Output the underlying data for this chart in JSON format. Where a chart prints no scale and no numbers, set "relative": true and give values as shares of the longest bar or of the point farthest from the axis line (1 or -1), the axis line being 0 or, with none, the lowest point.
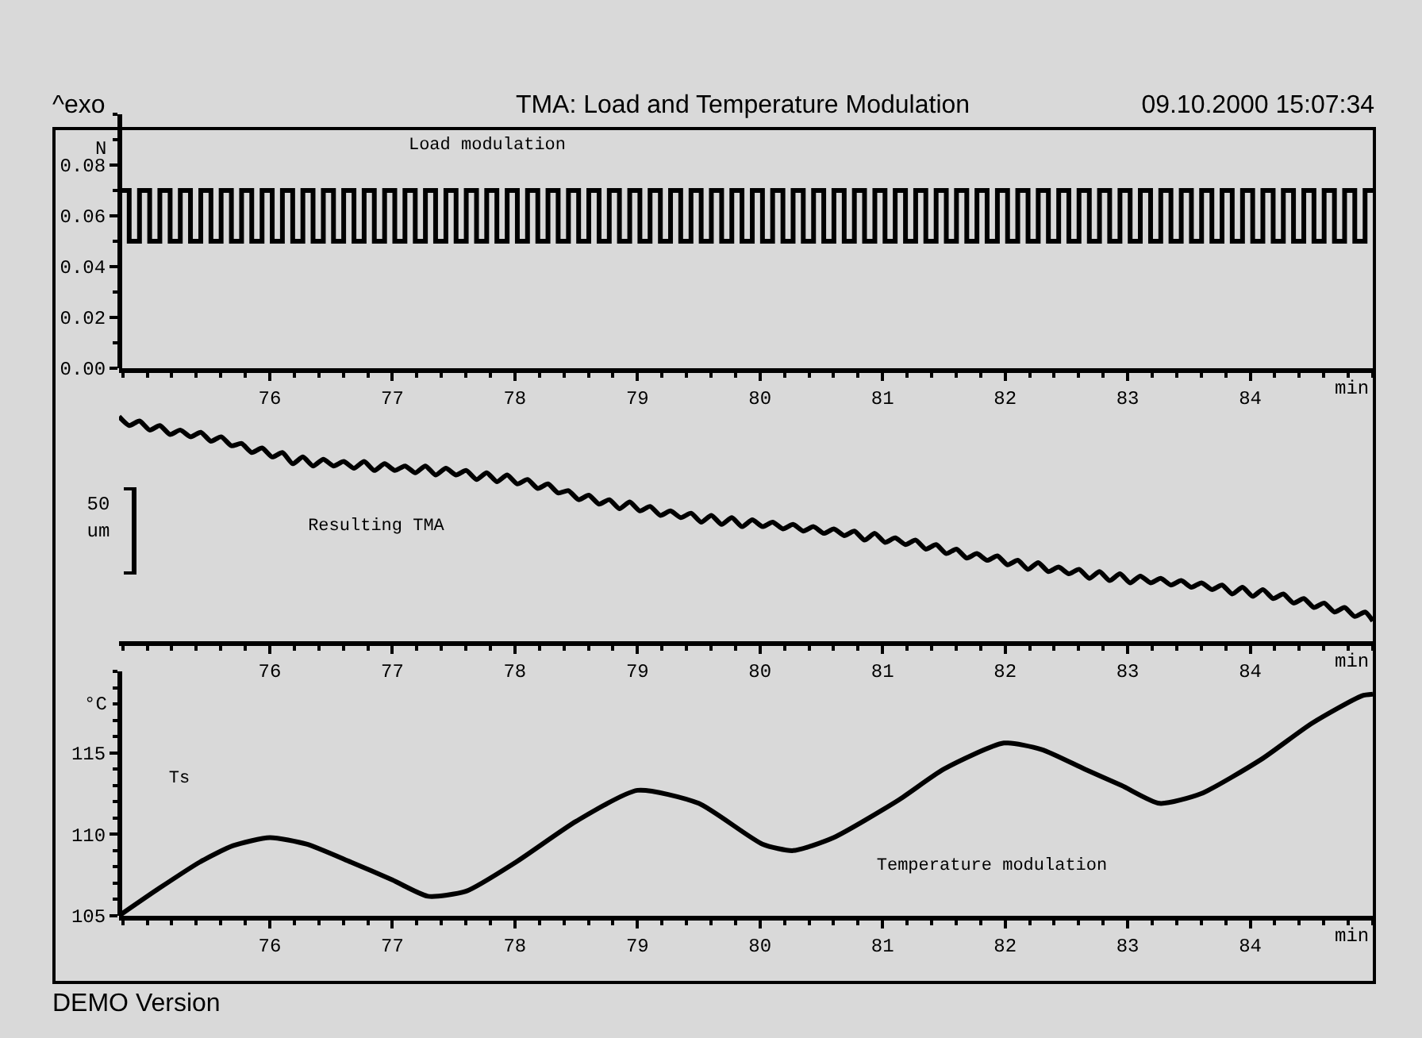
{
  "chart_data": [
    {
      "type": "step",
      "title": "TMA: Load and Temperature Modulation",
      "xlabel": "min",
      "ylabel": "N",
      "annotations": [
        "^exo",
        "09.10.2000 15:07:34",
        "Load modulation"
      ],
      "x": [
        74.77,
        74.853,
        74.937,
        75.02,
        75.103,
        75.187,
        75.27,
        75.353,
        75.437,
        75.52,
        75.603,
        75.687,
        75.77,
        75.853,
        75.937,
        76.02,
        76.103,
        76.187,
        76.27,
        76.353,
        76.437,
        76.52,
        76.603,
        76.687,
        76.77,
        76.853,
        76.937,
        77.02,
        77.103,
        77.187,
        77.27,
        77.353,
        77.437,
        77.52,
        77.603,
        77.687,
        77.77,
        77.853,
        77.937,
        78.02,
        78.103,
        78.187,
        78.27,
        78.353,
        78.437,
        78.52,
        78.603,
        78.687,
        78.77,
        78.853,
        78.937,
        79.02,
        79.103,
        79.187,
        79.27,
        79.353,
        79.437,
        79.52,
        79.603,
        79.687,
        79.77,
        79.853,
        79.937,
        80.02,
        80.103,
        80.187,
        80.27,
        80.353,
        80.437,
        80.52,
        80.603,
        80.687,
        80.77,
        80.853,
        80.937,
        81.02,
        81.103,
        81.187,
        81.27,
        81.353,
        81.437,
        81.52,
        81.603,
        81.687,
        81.77,
        81.853,
        81.937,
        82.02,
        82.103,
        82.187,
        82.27,
        82.353,
        82.437,
        82.52,
        82.603,
        82.687,
        82.77,
        82.853,
        82.937,
        83.02,
        83.103,
        83.187,
        83.27,
        83.353,
        83.437,
        83.52,
        83.603,
        83.687,
        83.77,
        83.853,
        83.937,
        84.02,
        84.103,
        84.187,
        84.27,
        84.353,
        84.437,
        84.52,
        84.603,
        84.687,
        84.77,
        84.853,
        84.937,
        85.0
      ],
      "series": [
        {
          "color": "#000000",
          "values": [
            0.07,
            0.05,
            0.07,
            0.05,
            0.07,
            0.05,
            0.07,
            0.05,
            0.07,
            0.05,
            0.07,
            0.05,
            0.07,
            0.05,
            0.07,
            0.05,
            0.07,
            0.05,
            0.07,
            0.05,
            0.07,
            0.05,
            0.07,
            0.05,
            0.07,
            0.05,
            0.07,
            0.05,
            0.07,
            0.05,
            0.07,
            0.05,
            0.07,
            0.05,
            0.07,
            0.05,
            0.07,
            0.05,
            0.07,
            0.05,
            0.07,
            0.05,
            0.07,
            0.05,
            0.07,
            0.05,
            0.07,
            0.05,
            0.07,
            0.05,
            0.07,
            0.05,
            0.07,
            0.05,
            0.07,
            0.05,
            0.07,
            0.05,
            0.07,
            0.05,
            0.07,
            0.05,
            0.07,
            0.05,
            0.07,
            0.05,
            0.07,
            0.05,
            0.07,
            0.05,
            0.07,
            0.05,
            0.07,
            0.05,
            0.07,
            0.05,
            0.07,
            0.05,
            0.07,
            0.05,
            0.07,
            0.05,
            0.07,
            0.05,
            0.07,
            0.05,
            0.07,
            0.05,
            0.07,
            0.05,
            0.07,
            0.05,
            0.07,
            0.05,
            0.07,
            0.05,
            0.07,
            0.05,
            0.07,
            0.05,
            0.07,
            0.05,
            0.07,
            0.05,
            0.07,
            0.05,
            0.07,
            0.05,
            0.07,
            0.05,
            0.07,
            0.05,
            0.07,
            0.05,
            0.07,
            0.05,
            0.07,
            0.05,
            0.07,
            0.05,
            0.07,
            0.05,
            0.07,
            0.07
          ]
        }
      ],
      "xlim": [
        74.77,
        85.0
      ],
      "xticks": [
        76,
        77,
        78,
        79,
        80,
        81,
        82,
        83,
        84
      ],
      "ylim": [
        0,
        0.1
      ],
      "yticks": [
        {
          "value": 0,
          "label": "0.00"
        },
        {
          "value": 0.02,
          "label": "0.02"
        },
        {
          "value": 0.04,
          "label": "0.04"
        },
        {
          "value": 0.06,
          "label": "0.06"
        },
        {
          "value": 0.08,
          "label": "0.08"
        }
      ]
    },
    {
      "type": "line",
      "relative": true,
      "xlabel": "min",
      "annotations": [
        "Resulting TMA",
        "50\num"
      ],
      "x": [
        74.77,
        74.853,
        74.937,
        75.02,
        75.103,
        75.187,
        75.27,
        75.353,
        75.437,
        75.52,
        75.603,
        75.687,
        75.77,
        75.853,
        75.937,
        76.02,
        76.103,
        76.187,
        76.27,
        76.353,
        76.437,
        76.52,
        76.603,
        76.687,
        76.77,
        76.853,
        76.937,
        77.02,
        77.103,
        77.187,
        77.27,
        77.353,
        77.437,
        77.52,
        77.603,
        77.687,
        77.77,
        77.853,
        77.937,
        78.02,
        78.103,
        78.187,
        78.27,
        78.353,
        78.437,
        78.52,
        78.603,
        78.687,
        78.77,
        78.853,
        78.937,
        79.02,
        79.103,
        79.187,
        79.27,
        79.353,
        79.437,
        79.52,
        79.603,
        79.687,
        79.77,
        79.853,
        79.937,
        80.02,
        80.103,
        80.187,
        80.27,
        80.353,
        80.437,
        80.52,
        80.603,
        80.687,
        80.77,
        80.853,
        80.937,
        81.02,
        81.103,
        81.187,
        81.27,
        81.353,
        81.437,
        81.52,
        81.603,
        81.687,
        81.77,
        81.853,
        81.937,
        82.02,
        82.103,
        82.187,
        82.27,
        82.353,
        82.437,
        82.52,
        82.603,
        82.687,
        82.77,
        82.853,
        82.937,
        83.02,
        83.103,
        83.187,
        83.27,
        83.353,
        83.437,
        83.52,
        83.603,
        83.687,
        83.77,
        83.853,
        83.937,
        84.02,
        84.103,
        84.187,
        84.27,
        84.353,
        84.437,
        84.52,
        84.603,
        84.687,
        84.77,
        84.853,
        84.937,
        85.0
      ],
      "series": [
        {
          "color": "#000000",
          "values": [
            1.0,
            0.96,
            0.98,
            0.94,
            0.96,
            0.92,
            0.94,
            0.91,
            0.93,
            0.89,
            0.91,
            0.87,
            0.88,
            0.84,
            0.86,
            0.82,
            0.84,
            0.79,
            0.82,
            0.78,
            0.81,
            0.78,
            0.8,
            0.77,
            0.8,
            0.76,
            0.79,
            0.76,
            0.78,
            0.75,
            0.78,
            0.74,
            0.77,
            0.74,
            0.76,
            0.72,
            0.75,
            0.71,
            0.74,
            0.7,
            0.72,
            0.68,
            0.7,
            0.66,
            0.67,
            0.63,
            0.65,
            0.61,
            0.63,
            0.59,
            0.62,
            0.58,
            0.6,
            0.56,
            0.58,
            0.55,
            0.57,
            0.53,
            0.56,
            0.52,
            0.55,
            0.51,
            0.54,
            0.51,
            0.53,
            0.5,
            0.52,
            0.49,
            0.51,
            0.48,
            0.5,
            0.47,
            0.49,
            0.45,
            0.48,
            0.44,
            0.46,
            0.43,
            0.45,
            0.41,
            0.43,
            0.39,
            0.41,
            0.37,
            0.39,
            0.36,
            0.38,
            0.34,
            0.36,
            0.32,
            0.35,
            0.31,
            0.33,
            0.3,
            0.32,
            0.28,
            0.31,
            0.27,
            0.3,
            0.26,
            0.29,
            0.26,
            0.28,
            0.25,
            0.27,
            0.24,
            0.26,
            0.23,
            0.25,
            0.21,
            0.24,
            0.2,
            0.23,
            0.19,
            0.21,
            0.17,
            0.19,
            0.15,
            0.17,
            0.13,
            0.15,
            0.11,
            0.13,
            0.09
          ]
        }
      ],
      "xlim": [
        74.77,
        85.0
      ],
      "xticks": [
        76,
        77,
        78,
        79,
        80,
        81,
        82,
        83,
        84
      ]
    },
    {
      "type": "line",
      "xlabel": "min",
      "ylabel": "°C",
      "annotations": [
        "Ts",
        "Temperature modulation",
        "DEMO Version"
      ],
      "x": [
        74.77,
        75.1,
        75.43,
        75.7,
        76.0,
        76.3,
        76.66,
        77.0,
        77.29,
        77.6,
        78.01,
        78.5,
        79.0,
        79.5,
        80.02,
        80.27,
        80.6,
        81.13,
        81.5,
        81.99,
        82.3,
        82.65,
        82.95,
        83.26,
        83.6,
        84.09,
        84.5,
        84.91,
        85.0
      ],
      "series": [
        {
          "color": "#000000",
          "values": [
            105.0,
            106.7,
            108.3,
            109.3,
            109.8,
            109.4,
            108.3,
            107.2,
            106.2,
            106.5,
            108.3,
            110.8,
            112.7,
            111.9,
            109.4,
            109.0,
            109.8,
            112.1,
            114.0,
            115.6,
            115.2,
            114.0,
            113.0,
            111.9,
            112.5,
            114.6,
            116.8,
            118.5,
            118.6
          ]
        }
      ],
      "xlim": [
        74.77,
        85.0
      ],
      "xticks": [
        76,
        77,
        78,
        79,
        80,
        81,
        82,
        83,
        84
      ],
      "ylim": [
        105,
        120
      ],
      "yticks": [
        105,
        110,
        115
      ]
    }
  ]
}
